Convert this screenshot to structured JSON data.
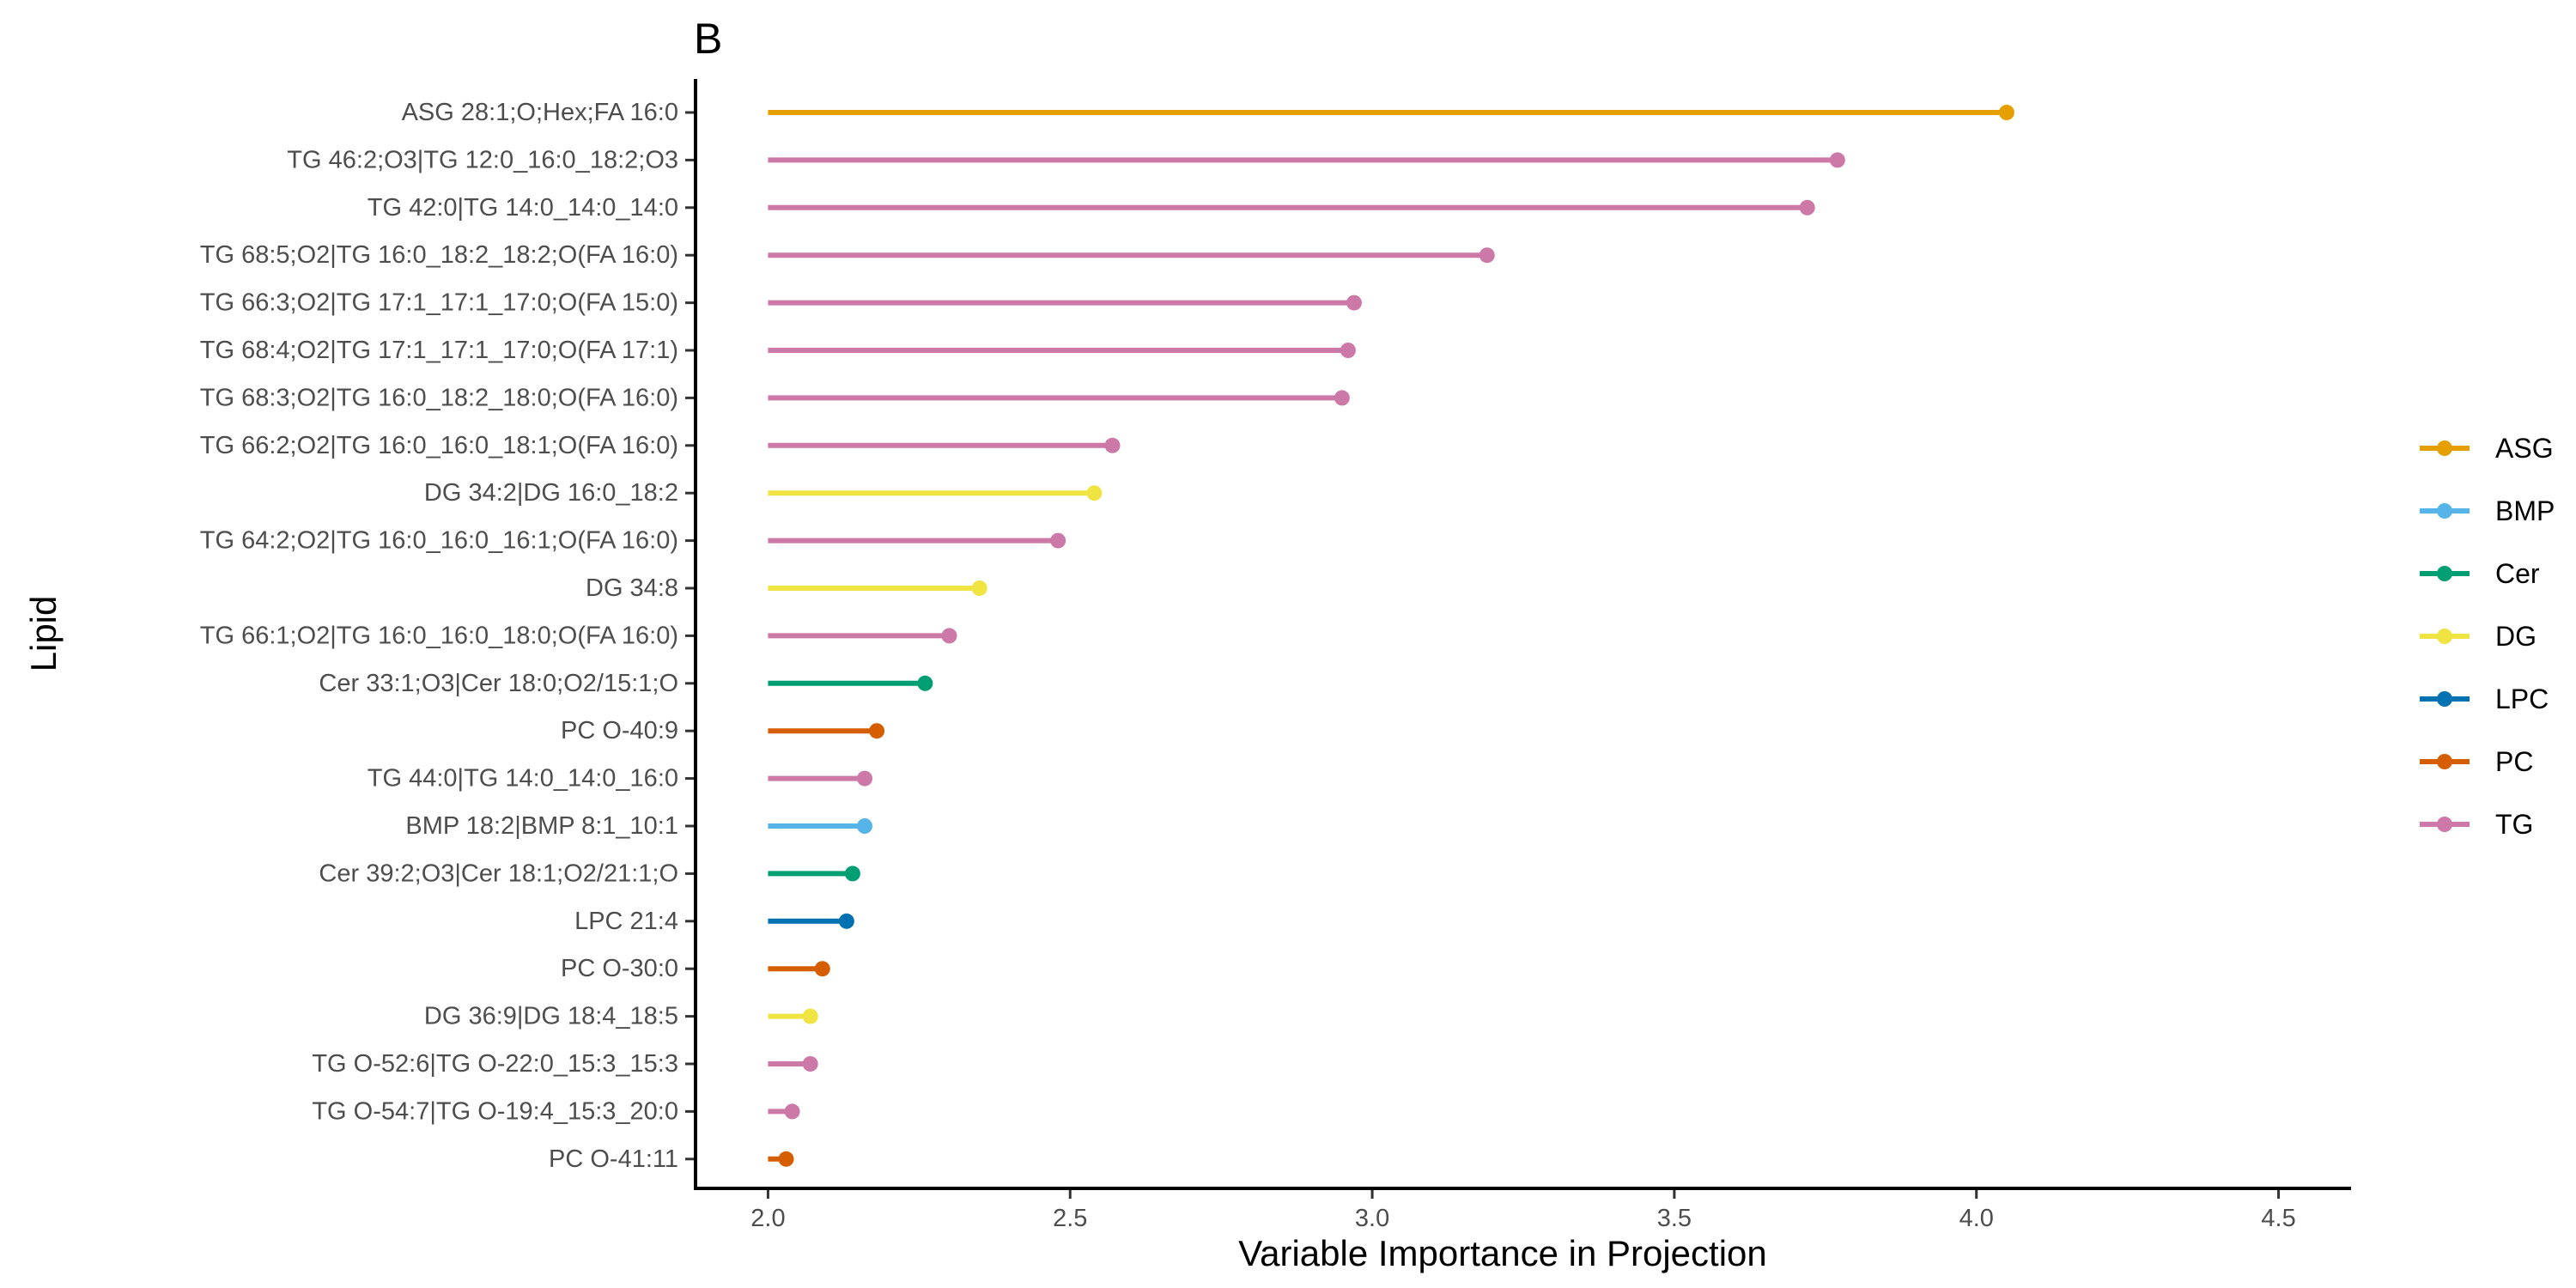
{
  "chart_data": {
    "type": "lollipop",
    "panel_label": "B",
    "xlabel": "Variable Importance in Projection",
    "ylabel": "Lipid",
    "xlim": [
      1.88,
      4.62
    ],
    "x_baseline": 2.0,
    "x_ticks": [
      2.0,
      2.5,
      3.0,
      3.5,
      4.0,
      4.5
    ],
    "x_tick_labels": [
      "2.0",
      "2.5",
      "3.0",
      "3.5",
      "4.0",
      "4.5"
    ],
    "grid": false,
    "legend_position": "right",
    "legend": [
      {
        "label": "ASG",
        "color": "#E69F00"
      },
      {
        "label": "BMP",
        "color": "#56B4E9"
      },
      {
        "label": "Cer",
        "color": "#009E73"
      },
      {
        "label": "DG",
        "color": "#F0E442"
      },
      {
        "label": "LPC",
        "color": "#0072B2"
      },
      {
        "label": "PC",
        "color": "#D55E00"
      },
      {
        "label": "TG",
        "color": "#CC79A7"
      }
    ],
    "points": [
      {
        "lipid": "ASG 28:1;O;Hex;FA 16:0",
        "class": "ASG",
        "vip": 4.05
      },
      {
        "lipid": "TG 46:2;O3|TG 12:0_16:0_18:2;O3",
        "class": "TG",
        "vip": 3.77
      },
      {
        "lipid": "TG 42:0|TG 14:0_14:0_14:0",
        "class": "TG",
        "vip": 3.72
      },
      {
        "lipid": "TG 68:5;O2|TG 16:0_18:2_18:2;O(FA 16:0)",
        "class": "TG",
        "vip": 3.19
      },
      {
        "lipid": "TG 66:3;O2|TG 17:1_17:1_17:0;O(FA 15:0)",
        "class": "TG",
        "vip": 2.97
      },
      {
        "lipid": "TG 68:4;O2|TG 17:1_17:1_17:0;O(FA 17:1)",
        "class": "TG",
        "vip": 2.96
      },
      {
        "lipid": "TG 68:3;O2|TG 16:0_18:2_18:0;O(FA 16:0)",
        "class": "TG",
        "vip": 2.95
      },
      {
        "lipid": "TG 66:2;O2|TG 16:0_16:0_18:1;O(FA 16:0)",
        "class": "TG",
        "vip": 2.57
      },
      {
        "lipid": "DG 34:2|DG 16:0_18:2",
        "class": "DG",
        "vip": 2.54
      },
      {
        "lipid": "TG 64:2;O2|TG 16:0_16:0_16:1;O(FA 16:0)",
        "class": "TG",
        "vip": 2.48
      },
      {
        "lipid": "DG 34:8",
        "class": "DG",
        "vip": 2.35
      },
      {
        "lipid": "TG 66:1;O2|TG 16:0_16:0_18:0;O(FA 16:0)",
        "class": "TG",
        "vip": 2.3
      },
      {
        "lipid": "Cer 33:1;O3|Cer 18:0;O2/15:1;O",
        "class": "Cer",
        "vip": 2.26
      },
      {
        "lipid": "PC O-40:9",
        "class": "PC",
        "vip": 2.18
      },
      {
        "lipid": "TG 44:0|TG 14:0_14:0_16:0",
        "class": "TG",
        "vip": 2.16
      },
      {
        "lipid": "BMP 18:2|BMP 8:1_10:1",
        "class": "BMP",
        "vip": 2.16
      },
      {
        "lipid": "Cer 39:2;O3|Cer 18:1;O2/21:1;O",
        "class": "Cer",
        "vip": 2.14
      },
      {
        "lipid": "LPC 21:4",
        "class": "LPC",
        "vip": 2.13
      },
      {
        "lipid": "PC O-30:0",
        "class": "PC",
        "vip": 2.09
      },
      {
        "lipid": "DG 36:9|DG 18:4_18:5",
        "class": "DG",
        "vip": 2.07
      },
      {
        "lipid": "TG O-52:6|TG O-22:0_15:3_15:3",
        "class": "TG",
        "vip": 2.07
      },
      {
        "lipid": "TG O-54:7|TG O-19:4_15:3_20:0",
        "class": "TG",
        "vip": 2.04
      },
      {
        "lipid": "PC O-41:11",
        "class": "PC",
        "vip": 2.03
      }
    ]
  }
}
